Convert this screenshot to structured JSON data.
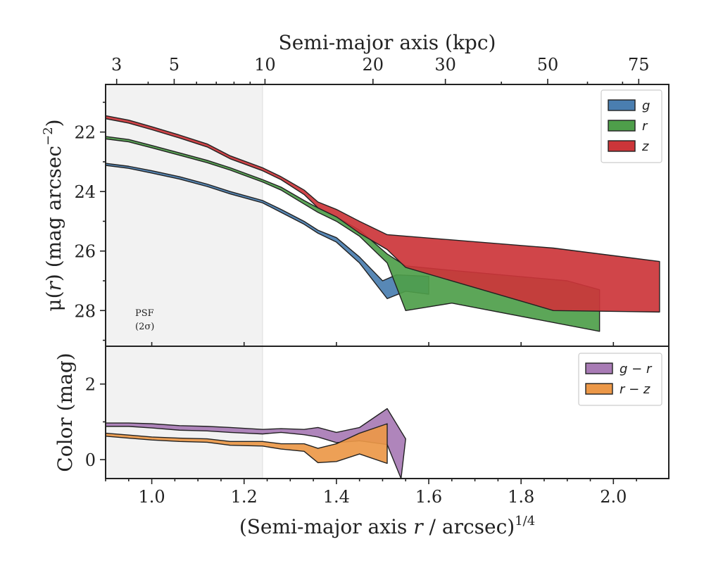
{
  "chart_data": [
    {
      "type": "area",
      "panel": "top",
      "top_axis": {
        "label": "Semi-major axis (kpc)",
        "tick_labels": [
          "3",
          "5",
          "10",
          "20",
          "30",
          "50",
          "75"
        ],
        "tick_values": [
          3,
          5,
          10,
          20,
          30,
          50,
          75
        ]
      },
      "ylabel_parts": {
        "pre": "μ(",
        "var": "r",
        "post": ") (mag arcsec",
        "sup": "−2",
        "end": ")"
      },
      "xlim": [
        0.9,
        2.12
      ],
      "ylim": [
        29.2,
        20.4
      ],
      "yticks": [
        22,
        24,
        26,
        28
      ],
      "shaded_region": {
        "x": [
          0.9,
          1.24
        ],
        "label_line1": "PSF",
        "label_line2": "(2σ)"
      },
      "legend": {
        "position": "upper right",
        "entries": [
          "g",
          "r",
          "z"
        ]
      },
      "series": [
        {
          "name": "g",
          "color": "#4a7eb0",
          "upper": [
            [
              0.9,
              23.05
            ],
            [
              0.95,
              23.15
            ],
            [
              1.0,
              23.3
            ],
            [
              1.06,
              23.5
            ],
            [
              1.12,
              23.75
            ],
            [
              1.17,
              24.0
            ],
            [
              1.24,
              24.3
            ],
            [
              1.28,
              24.6
            ],
            [
              1.33,
              25.0
            ],
            [
              1.36,
              25.3
            ],
            [
              1.4,
              25.55
            ],
            [
              1.45,
              26.2
            ],
            [
              1.5,
              27.0
            ],
            [
              1.53,
              26.8
            ],
            [
              1.6,
              26.85
            ]
          ],
          "lower": [
            [
              0.9,
              23.12
            ],
            [
              0.95,
              23.22
            ],
            [
              1.0,
              23.38
            ],
            [
              1.06,
              23.58
            ],
            [
              1.12,
              23.83
            ],
            [
              1.17,
              24.08
            ],
            [
              1.24,
              24.38
            ],
            [
              1.28,
              24.7
            ],
            [
              1.33,
              25.1
            ],
            [
              1.36,
              25.4
            ],
            [
              1.4,
              25.7
            ],
            [
              1.45,
              26.4
            ],
            [
              1.51,
              27.6
            ],
            [
              1.55,
              27.35
            ],
            [
              1.6,
              27.45
            ]
          ]
        },
        {
          "name": "r",
          "color": "#4e9e4a",
          "upper": [
            [
              0.9,
              22.15
            ],
            [
              0.95,
              22.25
            ],
            [
              1.0,
              22.45
            ],
            [
              1.06,
              22.7
            ],
            [
              1.12,
              22.95
            ],
            [
              1.17,
              23.2
            ],
            [
              1.24,
              23.6
            ],
            [
              1.28,
              23.85
            ],
            [
              1.33,
              24.3
            ],
            [
              1.36,
              24.55
            ],
            [
              1.4,
              24.85
            ],
            [
              1.45,
              25.3
            ],
            [
              1.51,
              26.1
            ],
            [
              1.55,
              26.5
            ],
            [
              1.65,
              26.65
            ],
            [
              1.9,
              27.0
            ],
            [
              1.97,
              27.3
            ]
          ],
          "lower": [
            [
              0.9,
              22.23
            ],
            [
              0.95,
              22.33
            ],
            [
              1.0,
              22.53
            ],
            [
              1.06,
              22.78
            ],
            [
              1.12,
              23.03
            ],
            [
              1.17,
              23.28
            ],
            [
              1.24,
              23.68
            ],
            [
              1.28,
              23.95
            ],
            [
              1.33,
              24.42
            ],
            [
              1.36,
              24.7
            ],
            [
              1.4,
              25.0
            ],
            [
              1.45,
              25.5
            ],
            [
              1.51,
              26.4
            ],
            [
              1.55,
              28.0
            ],
            [
              1.65,
              27.75
            ],
            [
              1.97,
              28.7
            ]
          ]
        },
        {
          "name": "z",
          "color": "#cc3539",
          "upper": [
            [
              0.9,
              21.45
            ],
            [
              0.95,
              21.6
            ],
            [
              1.0,
              21.82
            ],
            [
              1.06,
              22.1
            ],
            [
              1.12,
              22.4
            ],
            [
              1.17,
              22.8
            ],
            [
              1.24,
              23.2
            ],
            [
              1.28,
              23.5
            ],
            [
              1.33,
              23.95
            ],
            [
              1.36,
              24.35
            ],
            [
              1.4,
              24.6
            ],
            [
              1.45,
              25.0
            ],
            [
              1.51,
              25.45
            ],
            [
              1.87,
              25.9
            ],
            [
              2.1,
              26.35
            ]
          ],
          "lower": [
            [
              0.9,
              21.55
            ],
            [
              0.95,
              21.7
            ],
            [
              1.0,
              21.92
            ],
            [
              1.06,
              22.2
            ],
            [
              1.12,
              22.5
            ],
            [
              1.17,
              22.9
            ],
            [
              1.24,
              23.3
            ],
            [
              1.28,
              23.6
            ],
            [
              1.33,
              24.1
            ],
            [
              1.36,
              24.55
            ],
            [
              1.4,
              24.85
            ],
            [
              1.45,
              25.4
            ],
            [
              1.51,
              25.95
            ],
            [
              1.55,
              26.55
            ],
            [
              1.87,
              28.0
            ],
            [
              2.1,
              28.05
            ]
          ]
        }
      ]
    },
    {
      "type": "area",
      "panel": "bottom",
      "xlabel_parts": {
        "pre": "(Semi-major axis ",
        "var": "r",
        "post": " / arcsec)",
        "sup": "1/4"
      },
      "ylabel": "Color (mag)",
      "xlim": [
        0.9,
        2.12
      ],
      "ylim": [
        -0.5,
        3.0
      ],
      "xticks": [
        1.0,
        1.2,
        1.4,
        1.6,
        1.8,
        2.0
      ],
      "xtick_labels": [
        "1.0",
        "1.2",
        "1.4",
        "1.6",
        "1.8",
        "2.0"
      ],
      "yticks": [
        0,
        2
      ],
      "legend": {
        "position": "upper right",
        "entries": [
          "g − r",
          "r − z"
        ]
      },
      "series": [
        {
          "name": "g − r",
          "color": "#a87bb5",
          "upper": [
            [
              0.9,
              0.97
            ],
            [
              0.95,
              0.97
            ],
            [
              1.0,
              0.95
            ],
            [
              1.06,
              0.9
            ],
            [
              1.12,
              0.88
            ],
            [
              1.17,
              0.85
            ],
            [
              1.24,
              0.8
            ],
            [
              1.28,
              0.82
            ],
            [
              1.33,
              0.8
            ],
            [
              1.36,
              0.85
            ],
            [
              1.4,
              0.72
            ],
            [
              1.45,
              0.85
            ],
            [
              1.51,
              1.35
            ],
            [
              1.55,
              0.55
            ]
          ],
          "lower": [
            [
              0.9,
              0.88
            ],
            [
              0.95,
              0.88
            ],
            [
              1.0,
              0.84
            ],
            [
              1.06,
              0.78
            ],
            [
              1.12,
              0.76
            ],
            [
              1.17,
              0.72
            ],
            [
              1.24,
              0.68
            ],
            [
              1.28,
              0.72
            ],
            [
              1.33,
              0.66
            ],
            [
              1.36,
              0.6
            ],
            [
              1.4,
              0.45
            ],
            [
              1.45,
              0.5
            ],
            [
              1.51,
              0.4
            ],
            [
              1.54,
              -0.5
            ]
          ]
        },
        {
          "name": "r − z",
          "color": "#ec9848",
          "upper": [
            [
              0.9,
              0.7
            ],
            [
              0.95,
              0.65
            ],
            [
              1.0,
              0.6
            ],
            [
              1.06,
              0.57
            ],
            [
              1.12,
              0.55
            ],
            [
              1.17,
              0.48
            ],
            [
              1.24,
              0.48
            ],
            [
              1.28,
              0.42
            ],
            [
              1.33,
              0.42
            ],
            [
              1.36,
              0.3
            ],
            [
              1.4,
              0.42
            ],
            [
              1.45,
              0.7
            ],
            [
              1.51,
              0.95
            ]
          ],
          "lower": [
            [
              0.9,
              0.62
            ],
            [
              0.95,
              0.57
            ],
            [
              1.0,
              0.52
            ],
            [
              1.06,
              0.48
            ],
            [
              1.12,
              0.46
            ],
            [
              1.17,
              0.38
            ],
            [
              1.24,
              0.36
            ],
            [
              1.28,
              0.28
            ],
            [
              1.33,
              0.22
            ],
            [
              1.36,
              -0.08
            ],
            [
              1.4,
              -0.05
            ],
            [
              1.45,
              0.15
            ],
            [
              1.51,
              -0.1
            ]
          ]
        }
      ]
    }
  ]
}
